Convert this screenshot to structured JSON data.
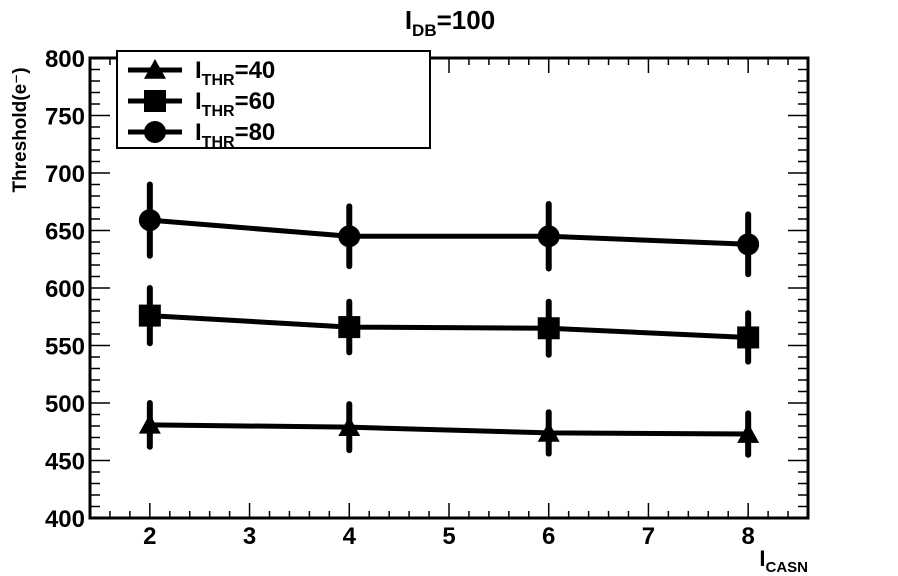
{
  "chart_data": {
    "type": "line",
    "title": {
      "main": "I",
      "sub": "DB",
      "rest": "=100"
    },
    "xlabel": {
      "main": "I",
      "sub": "CASN",
      "rest": ""
    },
    "ylabel": "Threshold(e⁻)",
    "xlim": [
      1.4,
      8.6
    ],
    "ylim": [
      400,
      800
    ],
    "x_ticks": [
      2,
      3,
      4,
      5,
      6,
      7,
      8
    ],
    "y_ticks": [
      400,
      450,
      500,
      550,
      600,
      650,
      700,
      750,
      800
    ],
    "legend_position": "top-left",
    "grid": false,
    "series": [
      {
        "label": {
          "main": "I",
          "sub": "THR",
          "rest": "=40"
        },
        "marker": "triangle",
        "x": [
          2,
          4,
          6,
          8
        ],
        "values": [
          481,
          479,
          474,
          473
        ],
        "err": [
          19,
          20,
          18,
          18
        ]
      },
      {
        "label": {
          "main": "I",
          "sub": "THR",
          "rest": "=60"
        },
        "marker": "square",
        "x": [
          2,
          4,
          6,
          8
        ],
        "values": [
          576,
          566,
          565,
          557
        ],
        "err": [
          24,
          22,
          23,
          21
        ]
      },
      {
        "label": {
          "main": "I",
          "sub": "THR",
          "rest": "=80"
        },
        "marker": "circle",
        "x": [
          2,
          4,
          6,
          8
        ],
        "values": [
          659,
          645,
          645,
          638
        ],
        "err": [
          31,
          26,
          28,
          26
        ]
      }
    ]
  }
}
